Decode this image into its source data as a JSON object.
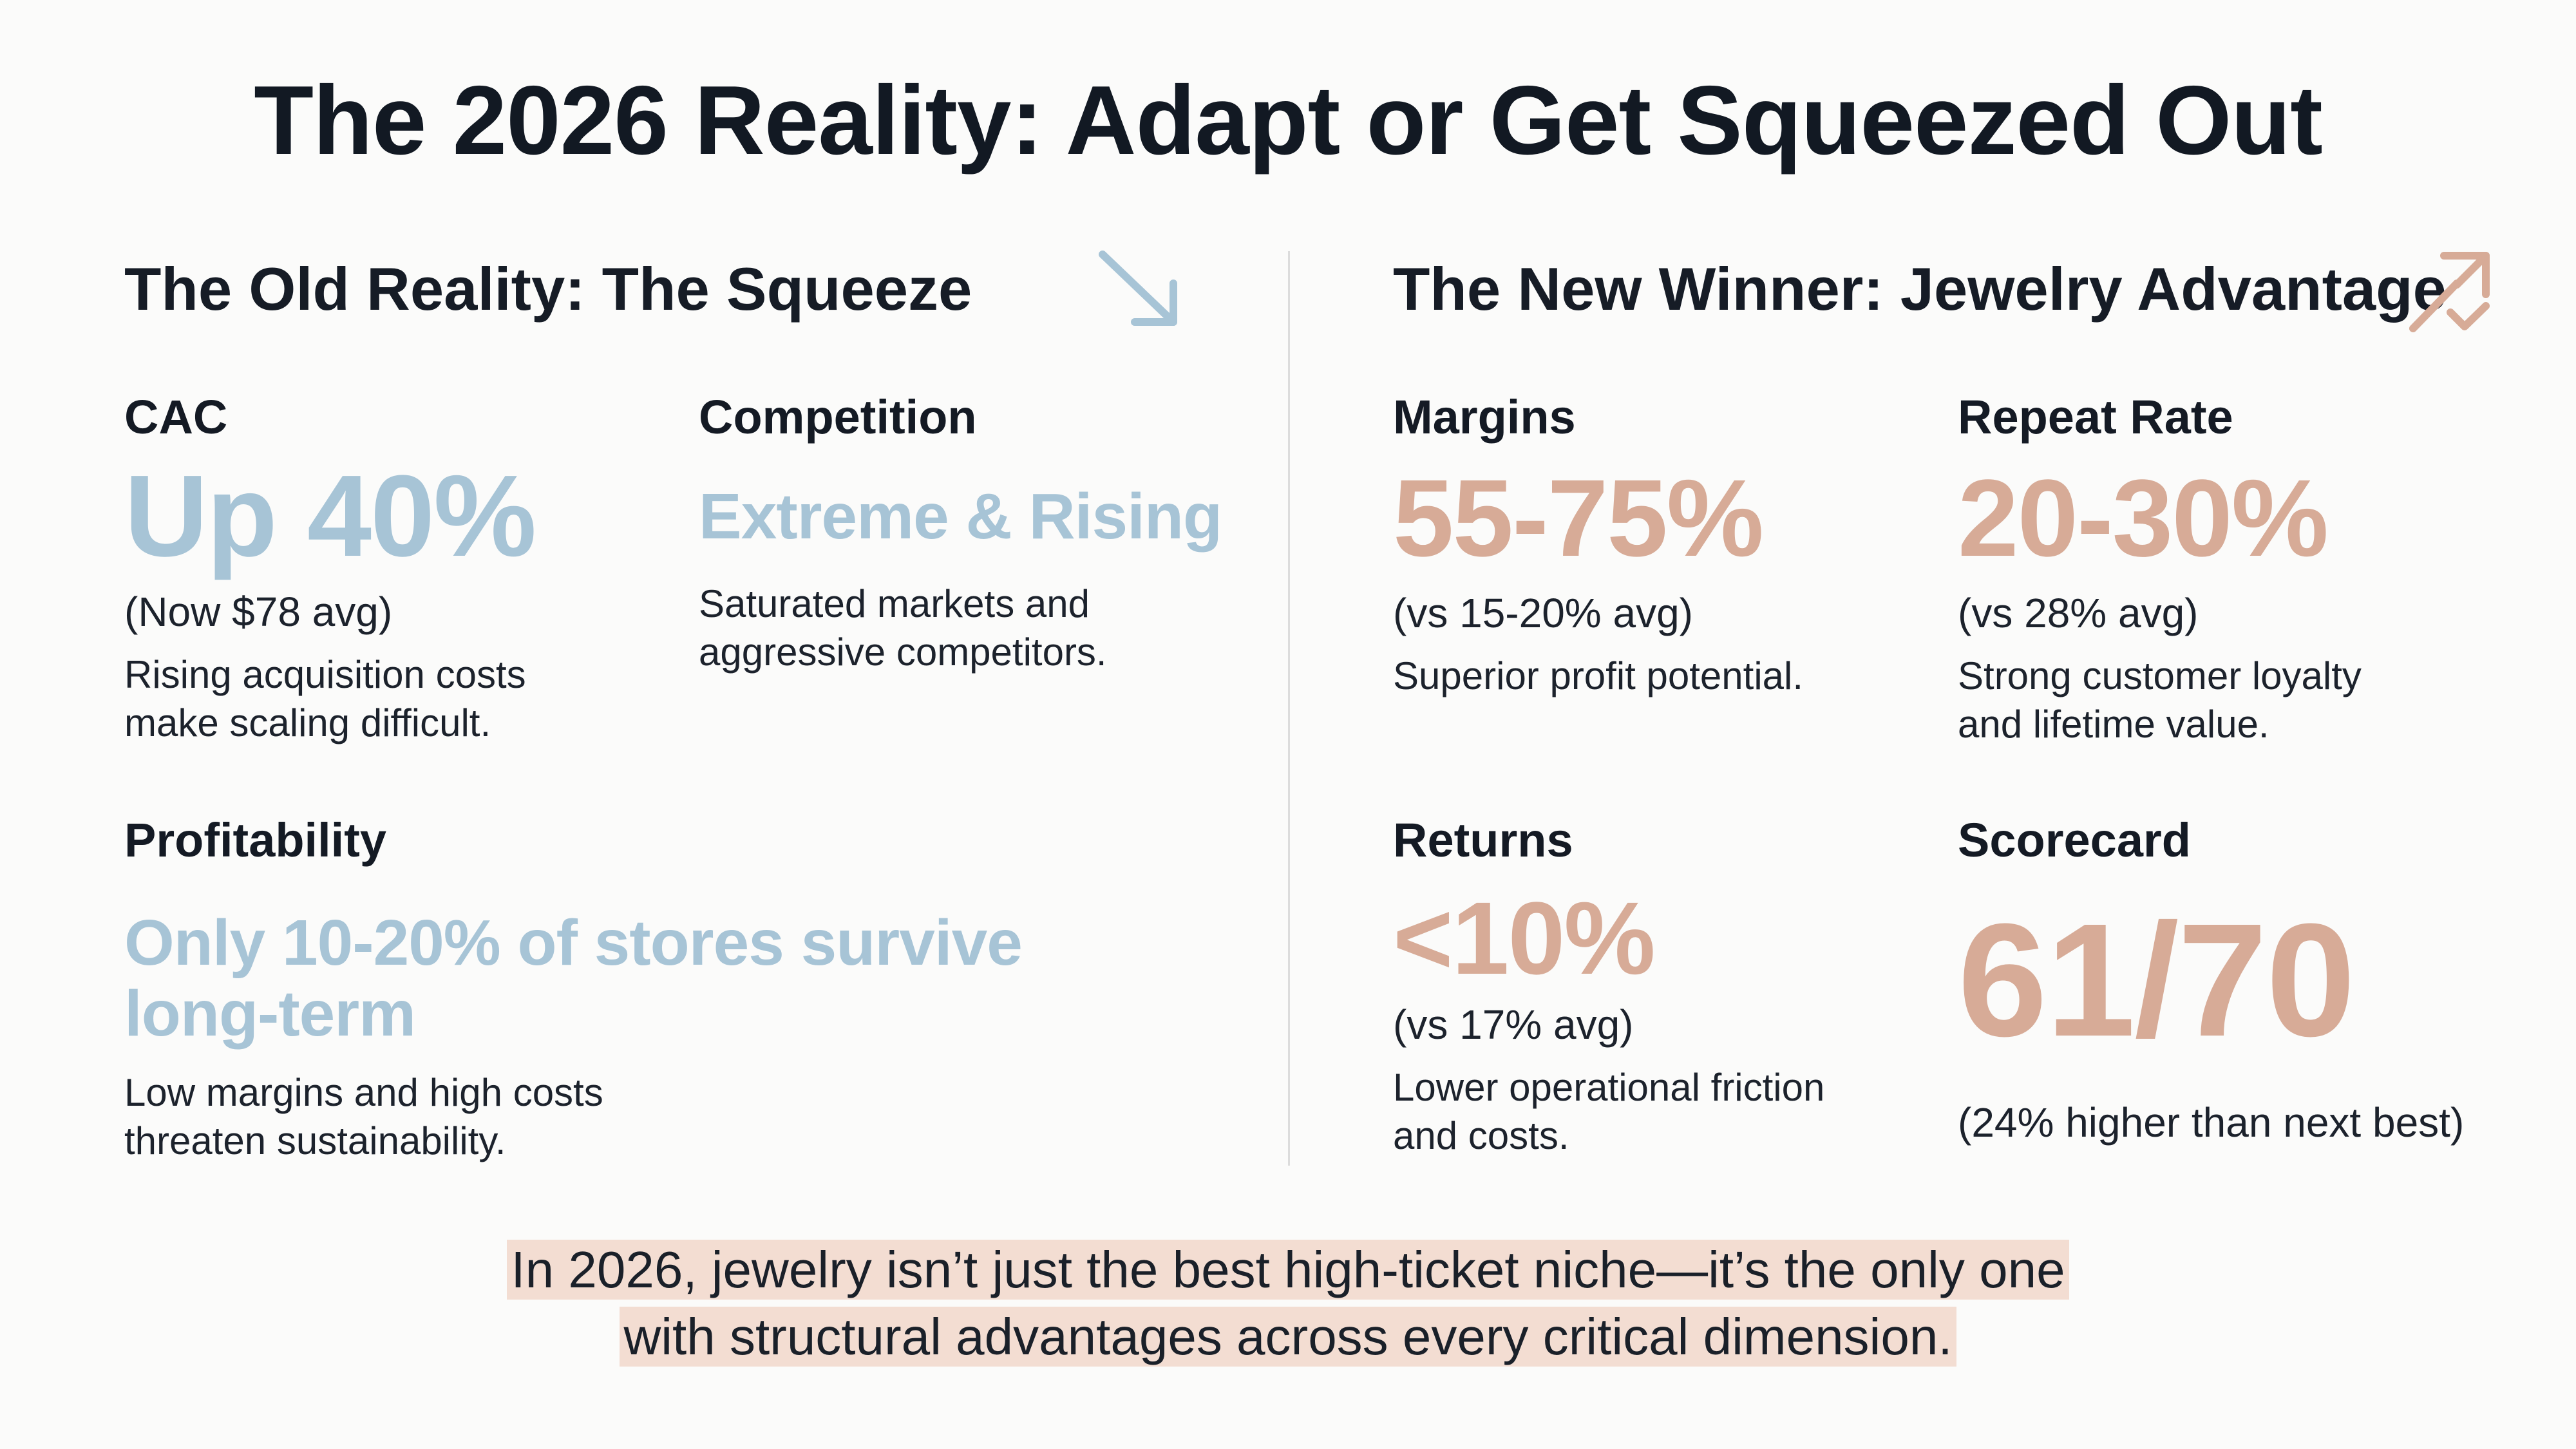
{
  "title": "The 2026 Reality: Adapt or Get Squeezed Out",
  "colors": {
    "old_accent": "#a7c4d6",
    "new_accent": "#d7ab97",
    "highlight": "#f3ddd2"
  },
  "old": {
    "heading": "The Old Reality: The Squeeze",
    "icon": "arrow-down-right-icon",
    "cac": {
      "label": "CAC",
      "value": "Up 40%",
      "sub": "(Now $78 avg)",
      "desc1": "Rising acquisition costs",
      "desc2": "make scaling difficult."
    },
    "competition": {
      "label": "Competition",
      "value": "Extreme & Rising",
      "desc1": "Saturated markets and",
      "desc2": "aggressive competitors."
    },
    "profitability": {
      "label": "Profitability",
      "value1": "Only 10-20% of stores survive",
      "value2": "long-term",
      "desc1": "Low margins and high costs",
      "desc2": "threaten sustainability."
    }
  },
  "new": {
    "heading": "The New Winner: Jewelry Advantage",
    "icon": "trending-up-icon",
    "margins": {
      "label": "Margins",
      "value": "55-75%",
      "sub": "(vs 15-20% avg)",
      "desc1": "Superior profit potential."
    },
    "repeat": {
      "label": "Repeat Rate",
      "value": "20-30%",
      "sub": "(vs 28% avg)",
      "desc1": "Strong customer loyalty",
      "desc2": "and lifetime value."
    },
    "returns": {
      "label": "Returns",
      "value": "<10%",
      "sub": "(vs 17% avg)",
      "desc1": "Lower operational friction",
      "desc2": "and costs."
    },
    "scorecard": {
      "label": "Scorecard",
      "value": "61/70",
      "sub": "(24% higher than next best)"
    }
  },
  "footer": {
    "line1": "In 2026, jewelry isn’t just the best high-ticket niche—it’s the only one",
    "line2": "with structural advantages across every critical dimension."
  }
}
